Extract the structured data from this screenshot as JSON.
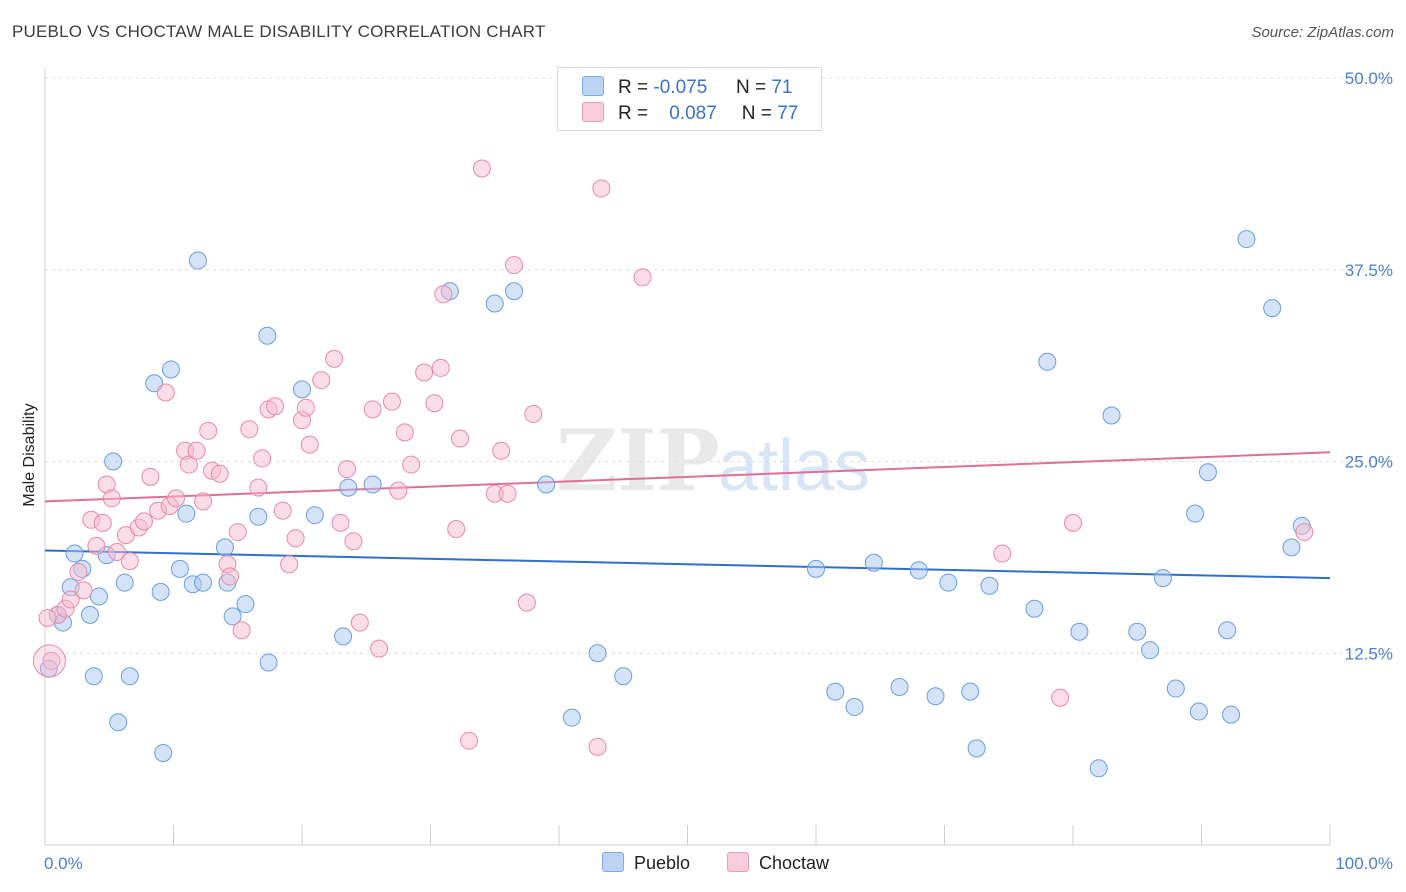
{
  "title": "PUEBLO VS CHOCTAW MALE DISABILITY CORRELATION CHART",
  "source": "Source: ZipAtlas.com",
  "watermark": {
    "zip": "ZIP",
    "atlas": "atlas"
  },
  "legend": {
    "rows": [
      {
        "name": "Pueblo",
        "r_label": "R =",
        "r_value": "-0.075",
        "n_label": "N =",
        "n_value": "71",
        "color": "#a9c8f0",
        "stroke": "#6a9ee0"
      },
      {
        "name": "Choctaw",
        "r_label": "R =",
        "r_value": "0.087",
        "n_label": "N =",
        "n_value": "77",
        "color": "#f6bccd",
        "stroke": "#e88aa8"
      }
    ]
  },
  "bottom_legend": {
    "pueblo": "Pueblo",
    "choctaw": "Choctaw"
  },
  "chart_data": {
    "type": "scatter",
    "title": "PUEBLO VS CHOCTAW MALE DISABILITY CORRELATION CHART",
    "xlabel": "",
    "ylabel": "Male Disability",
    "xlim": [
      0,
      100
    ],
    "ylim": [
      0,
      50
    ],
    "x_tick_labels": [
      "0.0%",
      "100.0%"
    ],
    "y_ticks": [
      12.5,
      25.0,
      37.5,
      50.0
    ],
    "y_tick_labels": [
      "12.5%",
      "25.0%",
      "37.5%",
      "50.0%"
    ],
    "grid": true,
    "legend_position": "top-center",
    "series": [
      {
        "name": "Pueblo",
        "color": "#a9c8f0",
        "stroke": "#6a9ee0",
        "trend": {
          "y_at_0": 19.2,
          "y_at_100": 17.4,
          "color": "#2f6fd0"
        },
        "points": [
          [
            0.3,
            11.5
          ],
          [
            1.0,
            15.0
          ],
          [
            1.4,
            14.5
          ],
          [
            2.0,
            16.8
          ],
          [
            2.3,
            19.0
          ],
          [
            2.9,
            18.0
          ],
          [
            3.5,
            15.0
          ],
          [
            4.2,
            16.2
          ],
          [
            4.8,
            18.9
          ],
          [
            5.3,
            25.0
          ],
          [
            5.7,
            8.0
          ],
          [
            6.2,
            17.1
          ],
          [
            6.6,
            11.0
          ],
          [
            8.5,
            30.1
          ],
          [
            9.0,
            16.5
          ],
          [
            9.2,
            6.0
          ],
          [
            9.8,
            31.0
          ],
          [
            10.5,
            18.0
          ],
          [
            11.0,
            21.6
          ],
          [
            11.5,
            17.0
          ],
          [
            11.9,
            38.1
          ],
          [
            12.3,
            17.1
          ],
          [
            14.0,
            19.4
          ],
          [
            14.2,
            17.1
          ],
          [
            14.6,
            14.9
          ],
          [
            15.6,
            15.7
          ],
          [
            16.6,
            21.4
          ],
          [
            17.3,
            33.2
          ],
          [
            17.4,
            11.9
          ],
          [
            20.0,
            29.7
          ],
          [
            21.0,
            21.5
          ],
          [
            23.2,
            13.6
          ],
          [
            23.6,
            23.3
          ],
          [
            25.5,
            23.5
          ],
          [
            31.5,
            36.1
          ],
          [
            35.0,
            35.3
          ],
          [
            36.5,
            36.1
          ],
          [
            39.0,
            23.5
          ],
          [
            41.0,
            8.3
          ],
          [
            43.0,
            12.5
          ],
          [
            45.0,
            11.0
          ],
          [
            60.0,
            18.0
          ],
          [
            61.5,
            10.0
          ],
          [
            63.0,
            9.0
          ],
          [
            64.5,
            18.4
          ],
          [
            66.5,
            10.3
          ],
          [
            68.0,
            17.9
          ],
          [
            69.3,
            9.7
          ],
          [
            70.3,
            17.1
          ],
          [
            72.0,
            10.0
          ],
          [
            72.5,
            6.3
          ],
          [
            73.5,
            16.9
          ],
          [
            77.0,
            15.4
          ],
          [
            78.0,
            31.5
          ],
          [
            80.5,
            13.9
          ],
          [
            82.0,
            5.0
          ],
          [
            83.0,
            28.0
          ],
          [
            85.0,
            13.9
          ],
          [
            86.0,
            12.7
          ],
          [
            87.0,
            17.4
          ],
          [
            88.0,
            10.2
          ],
          [
            89.5,
            21.6
          ],
          [
            89.8,
            8.7
          ],
          [
            90.5,
            24.3
          ],
          [
            92.0,
            14.0
          ],
          [
            92.3,
            8.5
          ],
          [
            93.5,
            39.5
          ],
          [
            95.5,
            35.0
          ],
          [
            97.0,
            19.4
          ],
          [
            97.8,
            20.8
          ],
          [
            3.8,
            11.0
          ]
        ]
      },
      {
        "name": "Choctaw",
        "color": "#f6bccd",
        "stroke": "#e88aa8",
        "trend": {
          "y_at_0": 22.4,
          "y_at_100": 25.6,
          "color": "#e06f98"
        },
        "points": [
          [
            0.5,
            12.0
          ],
          [
            1.0,
            15.0
          ],
          [
            1.6,
            15.4
          ],
          [
            2.0,
            16.0
          ],
          [
            2.6,
            17.8
          ],
          [
            3.0,
            16.6
          ],
          [
            3.6,
            21.2
          ],
          [
            4.0,
            19.5
          ],
          [
            4.5,
            21.0
          ],
          [
            4.8,
            23.5
          ],
          [
            5.2,
            22.6
          ],
          [
            5.6,
            19.1
          ],
          [
            6.3,
            20.2
          ],
          [
            6.6,
            18.5
          ],
          [
            7.3,
            20.7
          ],
          [
            7.7,
            21.1
          ],
          [
            8.2,
            24.0
          ],
          [
            8.8,
            21.8
          ],
          [
            9.4,
            29.5
          ],
          [
            9.7,
            22.1
          ],
          [
            10.2,
            22.6
          ],
          [
            10.9,
            25.7
          ],
          [
            11.2,
            24.8
          ],
          [
            11.8,
            25.7
          ],
          [
            12.3,
            22.4
          ],
          [
            12.7,
            27.0
          ],
          [
            13.0,
            24.4
          ],
          [
            13.6,
            24.2
          ],
          [
            14.2,
            18.3
          ],
          [
            14.4,
            17.5
          ],
          [
            15.0,
            20.4
          ],
          [
            15.3,
            14.0
          ],
          [
            15.9,
            27.1
          ],
          [
            16.6,
            23.3
          ],
          [
            16.9,
            25.2
          ],
          [
            17.4,
            28.4
          ],
          [
            17.9,
            28.6
          ],
          [
            18.5,
            21.8
          ],
          [
            19.0,
            18.3
          ],
          [
            19.5,
            20.0
          ],
          [
            20.0,
            27.7
          ],
          [
            20.3,
            28.5
          ],
          [
            20.6,
            26.1
          ],
          [
            21.5,
            30.3
          ],
          [
            22.5,
            31.7
          ],
          [
            23.0,
            21.0
          ],
          [
            23.5,
            24.5
          ],
          [
            24.0,
            19.8
          ],
          [
            24.5,
            14.5
          ],
          [
            25.5,
            28.4
          ],
          [
            26.0,
            12.8
          ],
          [
            27.0,
            28.9
          ],
          [
            27.5,
            23.1
          ],
          [
            28.0,
            26.9
          ],
          [
            28.5,
            24.8
          ],
          [
            29.5,
            30.8
          ],
          [
            30.3,
            28.8
          ],
          [
            30.8,
            31.1
          ],
          [
            31.0,
            35.9
          ],
          [
            32.0,
            20.6
          ],
          [
            32.3,
            26.5
          ],
          [
            33.0,
            6.8
          ],
          [
            34.0,
            44.1
          ],
          [
            35.0,
            22.9
          ],
          [
            35.5,
            25.7
          ],
          [
            36.0,
            22.9
          ],
          [
            36.5,
            37.8
          ],
          [
            37.5,
            15.8
          ],
          [
            38.0,
            28.1
          ],
          [
            43.0,
            6.4
          ],
          [
            43.3,
            42.8
          ],
          [
            46.5,
            37.0
          ],
          [
            74.5,
            19.0
          ],
          [
            79.0,
            9.6
          ],
          [
            80.0,
            21.0
          ],
          [
            98.0,
            20.4
          ],
          [
            0.2,
            14.8
          ]
        ]
      }
    ]
  }
}
